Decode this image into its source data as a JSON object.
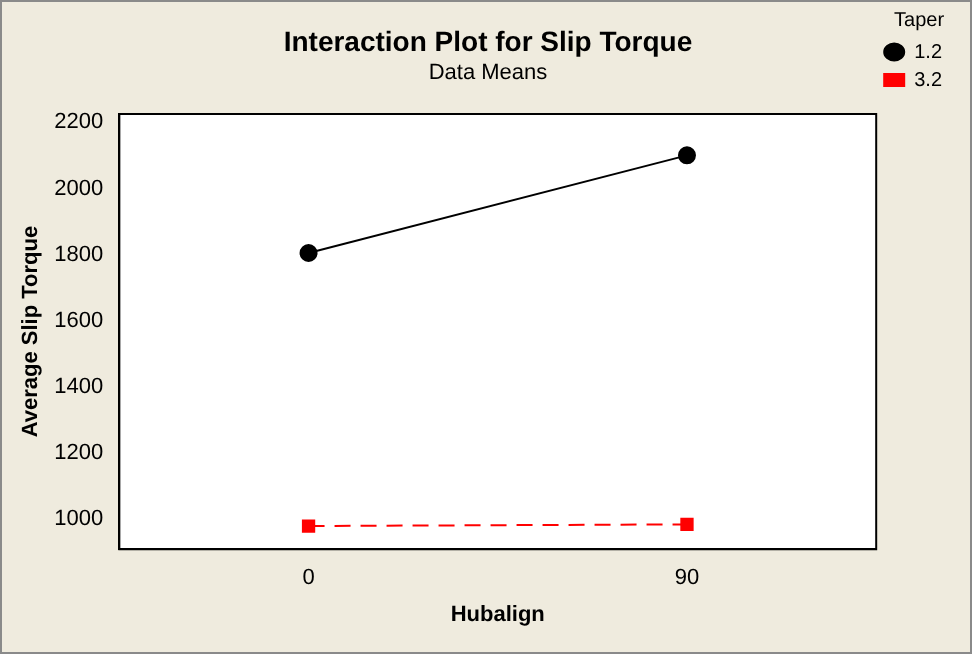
{
  "chart_data": {
    "type": "line",
    "title": "Interaction Plot for Slip Torque",
    "subtitle": "Data Means",
    "xlabel": "Hubalign",
    "ylabel": "Average Slip Torque",
    "legend_title": "Taper",
    "x": [
      0,
      90
    ],
    "xlim": [
      -45,
      135
    ],
    "xticks": [
      0,
      90
    ],
    "ylim": [
      910,
      2225
    ],
    "yticks": [
      1000,
      1200,
      1400,
      1600,
      1800,
      2000,
      2200
    ],
    "legend": "right",
    "grid": false,
    "series": [
      {
        "name": "1.2",
        "color": "#000000",
        "values": [
          1805,
          2100
        ],
        "marker": "circle",
        "line_style": "solid"
      },
      {
        "name": "3.2",
        "color": "#ff0000",
        "values": [
          980,
          985
        ],
        "marker": "square",
        "line_style": "dashed"
      }
    ]
  }
}
